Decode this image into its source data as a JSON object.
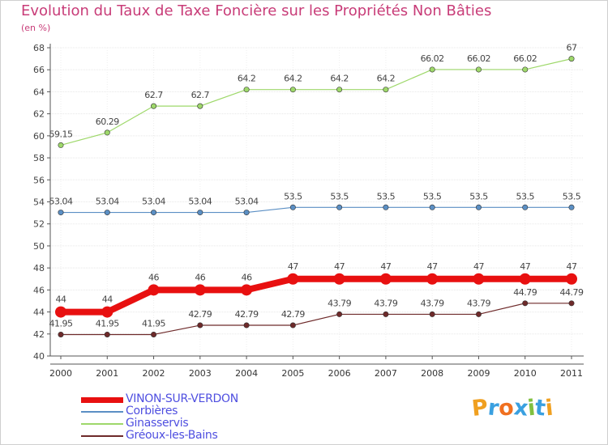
{
  "chart_data": {
    "type": "line",
    "title": "Evolution du Taux de Taxe Foncière sur les Propriétés Non Bâties",
    "ylabel": "(en %)",
    "xlabel": "",
    "x": [
      "2000",
      "2001",
      "2002",
      "2003",
      "2004",
      "2005",
      "2006",
      "2007",
      "2008",
      "2009",
      "2010",
      "2011"
    ],
    "ylim": [
      40,
      68
    ],
    "yticks": [
      40,
      42,
      44,
      46,
      48,
      50,
      52,
      54,
      56,
      58,
      60,
      62,
      64,
      66,
      68
    ],
    "grid": true,
    "legend": "bottom-left",
    "series": [
      {
        "name": "VINON-SUR-VERDON",
        "color": "#e81010",
        "values": [
          44,
          44,
          46,
          46,
          46,
          47,
          47,
          47,
          47,
          47,
          47,
          47
        ],
        "labels": [
          "44",
          "44",
          "46",
          "46",
          "46",
          "47",
          "47",
          "47",
          "47",
          "47",
          "47",
          "47"
        ]
      },
      {
        "name": "Corbières",
        "color": "#5b8fc4",
        "values": [
          53.04,
          53.04,
          53.04,
          53.04,
          53.04,
          53.5,
          53.5,
          53.5,
          53.5,
          53.5,
          53.5,
          53.5
        ],
        "labels": [
          "53.04",
          "53.04",
          "53.04",
          "53.04",
          "53.04",
          "53.5",
          "53.5",
          "53.5",
          "53.5",
          "53.5",
          "53.5",
          "53.5"
        ]
      },
      {
        "name": "Ginasservis",
        "color": "#9ed86a",
        "values": [
          59.15,
          60.29,
          62.7,
          62.7,
          64.2,
          64.2,
          64.2,
          64.2,
          66.02,
          66.02,
          66.02,
          67
        ],
        "labels": [
          "59.15",
          "60.29",
          "62.7",
          "62.7",
          "64.2",
          "64.2",
          "64.2",
          "64.2",
          "66.02",
          "66.02",
          "66.02",
          "67"
        ]
      },
      {
        "name": "Gréoux-les-Bains",
        "color": "#6e2a2a",
        "values": [
          41.95,
          41.95,
          41.95,
          42.79,
          42.79,
          42.79,
          43.79,
          43.79,
          43.79,
          43.79,
          44.79,
          44.79
        ],
        "labels": [
          "41.95",
          "41.95",
          "41.95",
          "42.79",
          "42.79",
          "42.79",
          "43.79",
          "43.79",
          "43.79",
          "43.79",
          "44.79",
          "44.79"
        ]
      }
    ]
  },
  "brand": {
    "name": "Proxiti",
    "letters": [
      "P",
      "r",
      "o",
      "x",
      "i",
      "t",
      "i"
    ],
    "colors": [
      "#f0a020",
      "#3aa0e0",
      "#f07020",
      "#3aa0e0",
      "#80c040",
      "#3aa0e0",
      "#f0a020"
    ]
  }
}
